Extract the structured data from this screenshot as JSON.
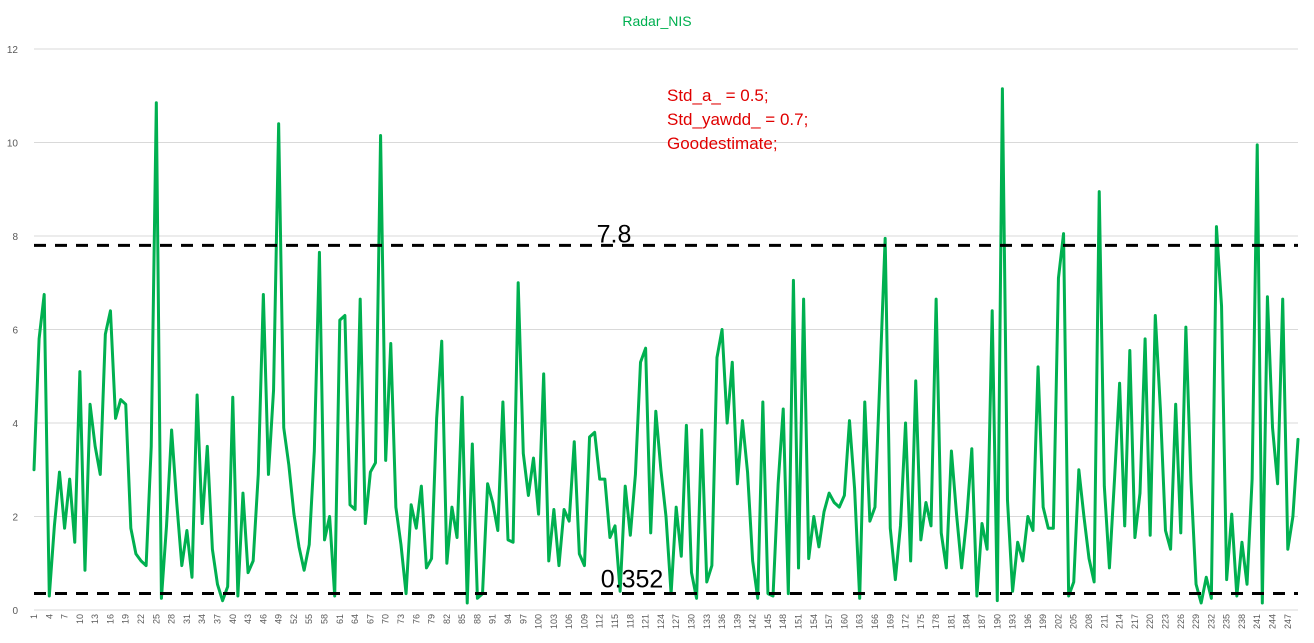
{
  "chart_data": {
    "type": "line",
    "title": "Radar_NIS",
    "xlabel": "",
    "ylabel": "",
    "ylim": [
      0,
      12
    ],
    "yticks": [
      0,
      2,
      4,
      6,
      8,
      10,
      12
    ],
    "xlim": [
      1,
      249
    ],
    "xtick_step": 3,
    "grid": "horizontal",
    "legend": "none",
    "series": [
      {
        "color": "#00b050",
        "x": [
          1,
          2,
          3,
          4,
          5,
          6,
          7,
          8,
          9,
          10,
          11,
          12,
          13,
          14,
          15,
          16,
          17,
          18,
          19,
          20,
          21,
          22,
          23,
          24,
          25,
          26,
          27,
          28,
          29,
          30,
          31,
          32,
          33,
          34,
          35,
          36,
          37,
          38,
          39,
          40,
          41,
          42,
          43,
          44,
          45,
          46,
          47,
          48,
          49,
          50,
          51,
          52,
          53,
          54,
          55,
          56,
          57,
          58,
          59,
          60,
          61,
          62,
          63,
          64,
          65,
          66,
          67,
          68,
          69,
          70,
          71,
          72,
          73,
          74,
          75,
          76,
          77,
          78,
          79,
          80,
          81,
          82,
          83,
          84,
          85,
          86,
          87,
          88,
          89,
          90,
          91,
          92,
          93,
          94,
          95,
          96,
          97,
          98,
          99,
          100,
          101,
          102,
          103,
          104,
          105,
          106,
          107,
          108,
          109,
          110,
          111,
          112,
          113,
          114,
          115,
          116,
          117,
          118,
          119,
          120,
          121,
          122,
          123,
          124,
          125,
          126,
          127,
          128,
          129,
          130,
          131,
          132,
          133,
          134,
          135,
          136,
          137,
          138,
          139,
          140,
          141,
          142,
          143,
          144,
          145,
          146,
          147,
          148,
          149,
          150,
          151,
          152,
          153,
          154,
          155,
          156,
          157,
          158,
          159,
          160,
          161,
          162,
          163,
          164,
          165,
          166,
          167,
          168,
          169,
          170,
          171,
          172,
          173,
          174,
          175,
          176,
          177,
          178,
          179,
          180,
          181,
          182,
          183,
          184,
          185,
          186,
          187,
          188,
          189,
          190,
          191,
          192,
          193,
          194,
          195,
          196,
          197,
          198,
          199,
          200,
          201,
          202,
          203,
          204,
          205,
          206,
          207,
          208,
          209,
          210,
          211,
          212,
          213,
          214,
          215,
          216,
          217,
          218,
          219,
          220,
          221,
          222,
          223,
          224,
          225,
          226,
          227,
          228,
          229,
          230,
          231,
          232,
          233,
          234,
          235,
          236,
          237,
          238,
          239,
          240,
          241,
          242,
          243,
          244,
          245,
          246,
          247,
          248,
          249
        ],
        "values": [
          3.0,
          5.8,
          6.75,
          0.3,
          1.8,
          2.95,
          1.75,
          2.8,
          1.45,
          5.1,
          0.85,
          4.4,
          3.5,
          2.9,
          5.9,
          6.4,
          4.1,
          4.5,
          4.4,
          1.75,
          1.2,
          1.05,
          0.95,
          3.5,
          10.85,
          0.25,
          1.8,
          3.85,
          2.3,
          0.95,
          1.7,
          0.7,
          4.6,
          1.85,
          3.5,
          1.3,
          0.55,
          0.2,
          0.5,
          4.55,
          0.3,
          2.5,
          0.8,
          1.05,
          2.9,
          6.75,
          2.9,
          4.7,
          10.4,
          3.9,
          3.1,
          2.05,
          1.35,
          0.85,
          1.4,
          3.4,
          7.65,
          1.5,
          2.0,
          0.3,
          6.2,
          6.3,
          2.25,
          2.15,
          6.65,
          1.85,
          2.95,
          3.15,
          10.15,
          3.2,
          5.7,
          2.2,
          1.4,
          0.35,
          2.25,
          1.75,
          2.65,
          0.9,
          1.1,
          4.1,
          5.75,
          1.0,
          2.2,
          1.55,
          4.55,
          0.15,
          3.55,
          0.25,
          0.35,
          2.7,
          2.3,
          1.7,
          4.45,
          1.5,
          1.45,
          7.0,
          3.35,
          2.45,
          3.25,
          2.05,
          5.05,
          1.05,
          2.15,
          0.95,
          2.15,
          1.9,
          3.6,
          1.2,
          0.95,
          3.7,
          3.8,
          2.8,
          2.8,
          1.55,
          1.8,
          0.4,
          2.65,
          1.6,
          2.9,
          5.3,
          5.6,
          1.65,
          4.25,
          3.0,
          2.0,
          0.35,
          2.2,
          1.15,
          3.95,
          0.8,
          0.25,
          3.85,
          0.6,
          0.95,
          5.4,
          6.0,
          4.0,
          5.3,
          2.7,
          4.05,
          2.95,
          1.05,
          0.25,
          4.45,
          0.35,
          0.3,
          2.7,
          4.3,
          0.35,
          7.05,
          0.9,
          6.65,
          1.1,
          2.0,
          1.35,
          2.1,
          2.5,
          2.3,
          2.2,
          2.45,
          4.05,
          2.6,
          0.25,
          4.45,
          1.9,
          2.2,
          5.05,
          7.95,
          1.75,
          0.65,
          1.8,
          4.0,
          1.05,
          4.9,
          1.5,
          2.3,
          1.8,
          6.65,
          1.65,
          0.9,
          3.4,
          2.05,
          0.9,
          1.95,
          3.45,
          0.3,
          1.85,
          1.3,
          6.4,
          0.2,
          11.15,
          2.35,
          0.4,
          1.45,
          1.05,
          2.0,
          1.7,
          5.2,
          2.2,
          1.75,
          1.75,
          7.1,
          8.05,
          0.3,
          0.6,
          3.0,
          2.0,
          1.1,
          0.6,
          8.95,
          2.65,
          0.9,
          2.8,
          4.85,
          1.8,
          5.55,
          1.55,
          2.5,
          5.8,
          1.6,
          6.3,
          4.3,
          1.7,
          1.3,
          4.4,
          1.65,
          6.05,
          2.75,
          0.55,
          0.15,
          0.7,
          0.25,
          8.2,
          6.5,
          0.65,
          2.05,
          0.3,
          1.45,
          0.55,
          2.8,
          9.95,
          0.15,
          6.7,
          3.9,
          2.7,
          6.65,
          1.3,
          2.0,
          3.65
        ]
      }
    ],
    "annotations": {
      "upper_threshold": {
        "value": 7.8,
        "label": "7.8"
      },
      "lower_threshold": {
        "value": 0.352,
        "label": "0.352"
      },
      "note_lines": [
        "Std_a_ = 0.5;",
        "Std_yawdd_ = 0.7;",
        "Goodestimate;"
      ]
    }
  }
}
